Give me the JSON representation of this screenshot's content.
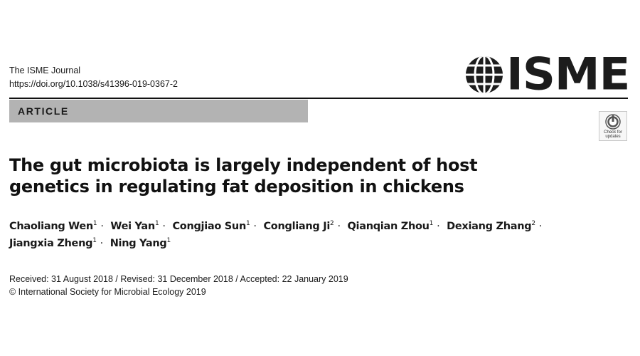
{
  "header": {
    "journal_name": "The ISME Journal",
    "doi": "https://doi.org/10.1038/s41396-019-0367-2",
    "logo_text": "ISME",
    "logo_icon": "globe-icon"
  },
  "article_type": "ARTICLE",
  "check_updates": {
    "line1": "Check for",
    "line2": "updates",
    "icon": "check-for-updates-icon"
  },
  "title": "The gut microbiota is largely independent of host genetics in regulating fat deposition in chickens",
  "authors": [
    {
      "name": "Chaoliang Wen",
      "affil": "1"
    },
    {
      "name": "Wei Yan",
      "affil": "1"
    },
    {
      "name": "Congjiao Sun",
      "affil": "1"
    },
    {
      "name": "Congliang Ji",
      "affil": "2"
    },
    {
      "name": "Qianqian Zhou",
      "affil": "1"
    },
    {
      "name": "Dexiang Zhang",
      "affil": "2"
    },
    {
      "name": "Jiangxia Zheng",
      "affil": "1"
    },
    {
      "name": "Ning Yang",
      "affil": "1"
    }
  ],
  "author_separator": "·",
  "dates": "Received: 31 August 2018 / Revised: 31 December 2018 / Accepted: 22 January 2019",
  "copyright": "© International Society for Microbial Ecology 2019"
}
